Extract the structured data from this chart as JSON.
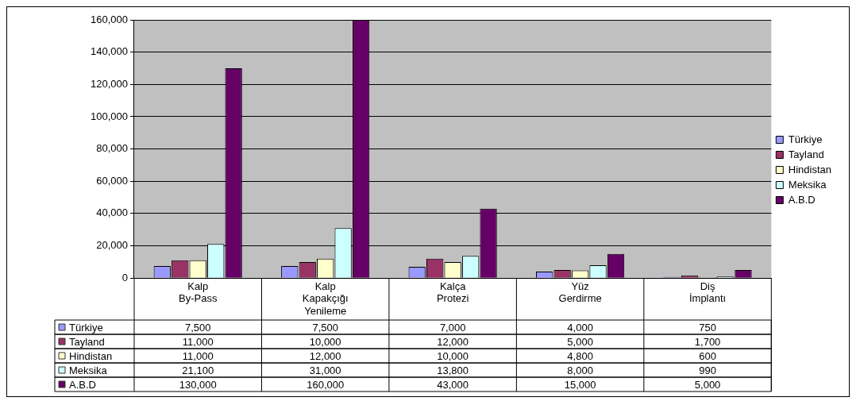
{
  "chart_data": {
    "type": "bar",
    "categories": [
      "Kalp By-Pass",
      "Kalp Kapakçığı Yenileme",
      "Kalça Protezi",
      "Yüz Gerdirme",
      "Diş İmplantı"
    ],
    "series": [
      {
        "name": "Türkiye",
        "color": "#9999ff",
        "values": [
          7500,
          7500,
          7000,
          4000,
          750
        ],
        "value_labels": [
          "7,500",
          "7,500",
          "7,000",
          "4,000",
          "750"
        ]
      },
      {
        "name": "Tayland",
        "color": "#993366",
        "values": [
          11000,
          10000,
          12000,
          5000,
          1700
        ],
        "value_labels": [
          "11,000",
          "10,000",
          "12,000",
          "5,000",
          "1,700"
        ]
      },
      {
        "name": "Hindistan",
        "color": "#ffffcc",
        "values": [
          11000,
          12000,
          10000,
          4800,
          600
        ],
        "value_labels": [
          "11,000",
          "12,000",
          "10,000",
          "4,800",
          "600"
        ]
      },
      {
        "name": "Meksika",
        "color": "#ccffff",
        "values": [
          21100,
          31000,
          13800,
          8000,
          990
        ],
        "value_labels": [
          "21,100",
          "31,000",
          "13,800",
          "8,000",
          "990"
        ]
      },
      {
        "name": "A.B.D",
        "color": "#660066",
        "values": [
          130000,
          160000,
          43000,
          15000,
          5000
        ],
        "value_labels": [
          "130,000",
          "160,000",
          "43,000",
          "15,000",
          "5,000"
        ]
      }
    ],
    "ylim": [
      0,
      160000
    ],
    "yticks": [
      0,
      {
        "value": 20000,
        "label": "20,000"
      },
      {
        "value": 40000,
        "label": "40,000"
      },
      {
        "value": 60000,
        "label": "60,000"
      },
      {
        "value": 80000,
        "label": "80,000"
      },
      {
        "value": 100000,
        "label": "100,000"
      },
      {
        "value": 120000,
        "label": "120,000"
      },
      {
        "value": 140000,
        "label": "140,000"
      },
      {
        "value": 160000,
        "label": "160,000"
      }
    ],
    "grid": "y",
    "legend": "right"
  }
}
